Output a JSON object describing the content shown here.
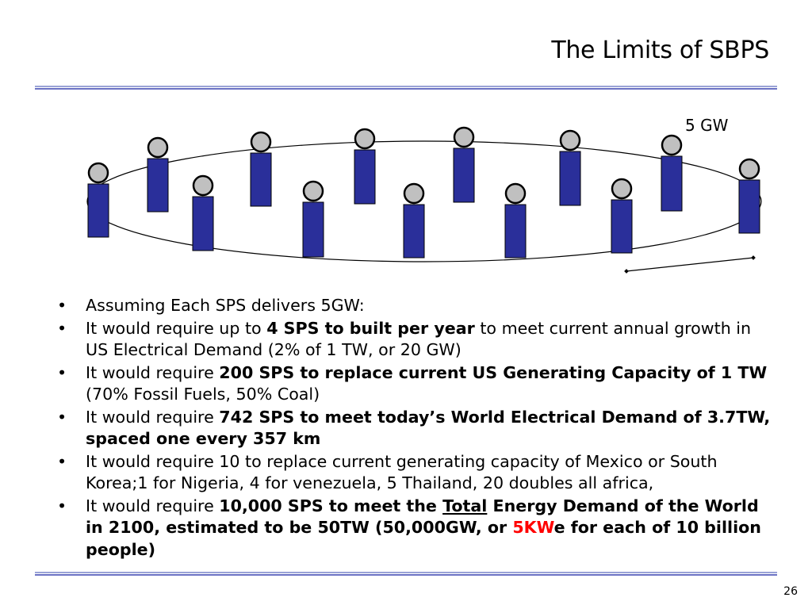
{
  "slide": {
    "title": "The Limits of SBPS",
    "page_number": "26"
  },
  "diagram": {
    "label": "5 GW",
    "satellite_count": 13,
    "colors": {
      "panel": "#2a2f9a",
      "panel_border": "#000000",
      "node": "#c0c0c0"
    }
  },
  "bullets": [
    {
      "t1": "Assuming Each SPS delivers 5GW:"
    },
    {
      "t1": "It would require up to ",
      "b1": "4 SPS to built per year",
      "t2": " to meet current annual growth in US Electrical Demand (2% of 1 TW, or 20 GW)"
    },
    {
      "t1": "It would require ",
      "b1": "200 SPS to replace current US Generating Capacity of 1 TW",
      "t2": " (70% Fossil Fuels, 50% Coal)"
    },
    {
      "t1": "It would require ",
      "b1": "742 SPS to meet today’s World Electrical Demand of 3.7TW, spaced one every 357 km"
    },
    {
      "t1": "It would require 10 to replace current generating capacity of Mexico or South Korea;1 for Nigeria, 4 for venezuela, 5 Thailand, 20 doubles all africa,"
    },
    {
      "t1": "It would require ",
      "b1": "10,000 SPS to meet the ",
      "bu": "Total",
      "b2": " Energy Demand of the World in 2100, estimated to be 50TW (50,000GW, or ",
      "red": "5KW",
      "b3": "e for each of 10 billion people)"
    }
  ]
}
